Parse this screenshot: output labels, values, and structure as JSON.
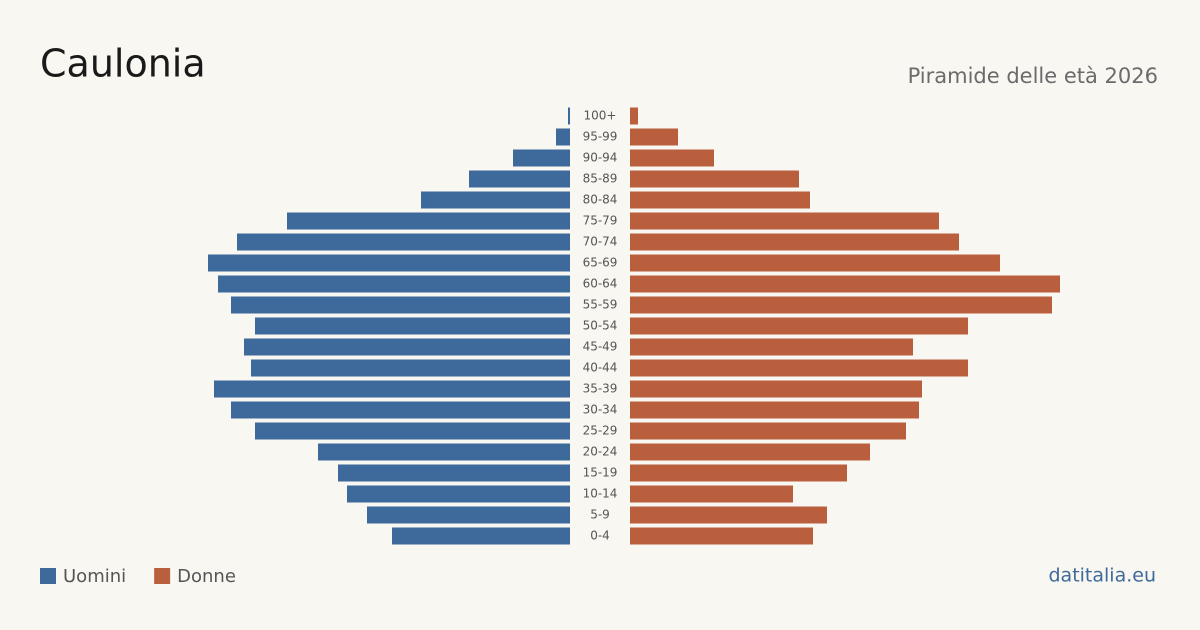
{
  "chart_data": {
    "type": "pyramid",
    "title": "Caulonia",
    "subtitle": "Piramide delle età 2026",
    "categories": [
      "100+",
      "95-99",
      "90-94",
      "85-89",
      "80-84",
      "75-79",
      "70-74",
      "65-69",
      "60-64",
      "55-59",
      "50-54",
      "45-49",
      "40-44",
      "35-39",
      "30-34",
      "25-29",
      "20-24",
      "15-19",
      "10-14",
      "5-9",
      "0-4"
    ],
    "series": [
      {
        "name": "Uomini",
        "color": "#3d6a9a",
        "values": [
          2,
          14,
          57,
          101,
          149,
          283,
          333,
          362,
          352,
          339,
          315,
          326,
          319,
          356,
          339,
          315,
          252,
          232,
          223,
          203,
          178
        ]
      },
      {
        "name": "Donne",
        "color": "#b95f3d",
        "values": [
          8,
          48,
          84,
          169,
          180,
          309,
          329,
          370,
          430,
          422,
          338,
          283,
          338,
          292,
          289,
          276,
          240,
          217,
          163,
          197,
          183
        ]
      }
    ],
    "source": "datitalia.eu"
  }
}
